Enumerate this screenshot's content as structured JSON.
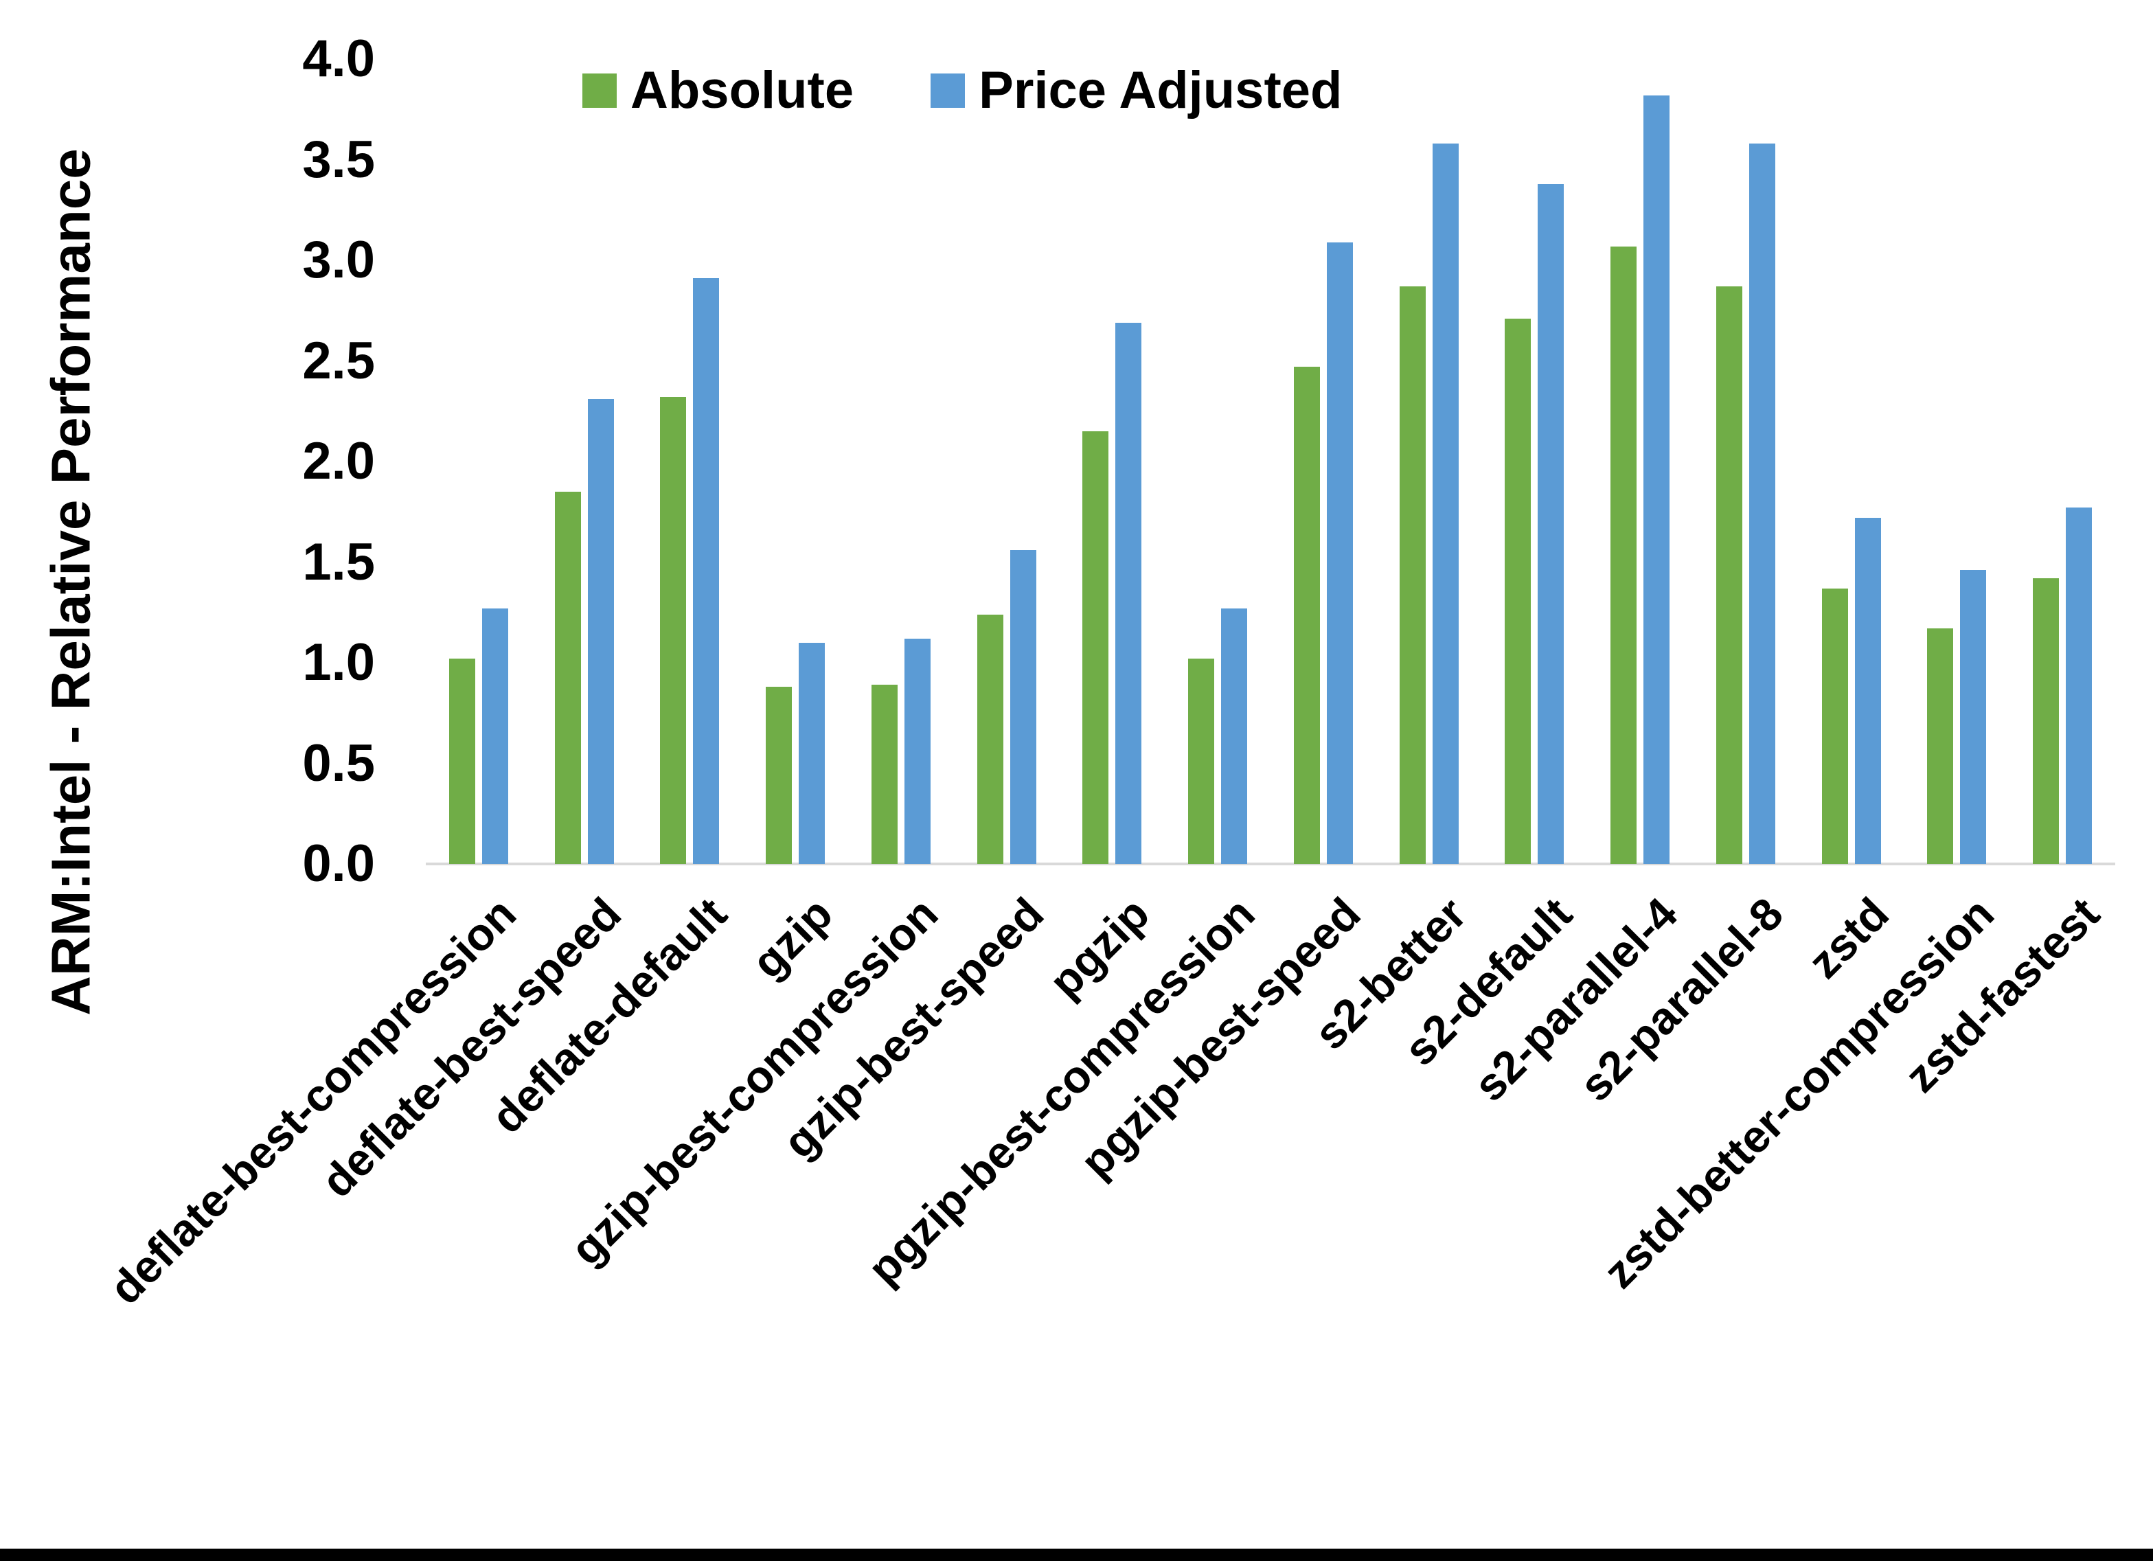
{
  "figure": {
    "background": "#FFFFFF",
    "bottom_bar_color": "#000000",
    "text_color": "#000000"
  },
  "chart_data": {
    "type": "bar",
    "title": "",
    "xlabel": "",
    "ylabel": "ARM:Intel - Relative Performance",
    "ylim": [
      0.0,
      4.0
    ],
    "ytick_step": 0.5,
    "ytick_labels": [
      "0.0",
      "0.5",
      "1.0",
      "1.5",
      "2.0",
      "2.5",
      "3.0",
      "3.5",
      "4.0"
    ],
    "grid": false,
    "axis_line_color": "#D9D9D9",
    "legend_position": "top-center",
    "categories": [
      "deflate-best-compression",
      "deflate-best-speed",
      "deflate-default",
      "gzip",
      "gzip-best-compression",
      "gzip-best-speed",
      "pgzip",
      "pgzip-best-compression",
      "pgzip-best-speed",
      "s2-better",
      "s2-default",
      "s2-parallel-4",
      "s2-parallel-8",
      "zstd",
      "zstd-better-compression",
      "zstd-fastest"
    ],
    "series": [
      {
        "name": "Absolute",
        "color": "#70AD47",
        "values": [
          1.02,
          1.85,
          2.32,
          0.88,
          0.89,
          1.24,
          2.15,
          1.02,
          2.47,
          2.87,
          2.71,
          3.07,
          2.87,
          1.37,
          1.17,
          1.42
        ]
      },
      {
        "name": "Price Adjusted",
        "color": "#5B9BD5",
        "values": [
          1.27,
          2.31,
          2.91,
          1.1,
          1.12,
          1.56,
          2.69,
          1.27,
          3.09,
          3.58,
          3.38,
          3.82,
          3.58,
          1.72,
          1.46,
          1.77
        ]
      }
    ]
  }
}
